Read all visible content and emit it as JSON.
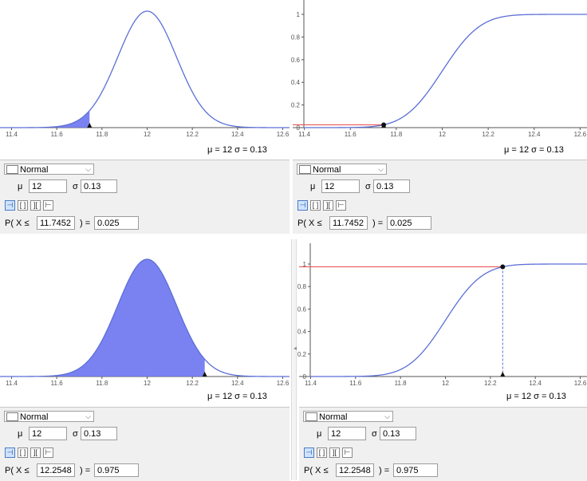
{
  "colors": {
    "curve": "#5b6fd6",
    "shade": "#6b74f0",
    "marker": "#e64c4c",
    "axis": "#555555"
  },
  "distribution": {
    "label": "Normal",
    "mu": "12",
    "sigma": "0.13"
  },
  "stats": {
    "mu_label": "μ = 12",
    "sigma_label": "σ = 0.13"
  },
  "params": {
    "mu_symbol": "μ",
    "sigma_symbol": "σ",
    "p_prefix": "P( X ≤",
    "p_suffix": ") ="
  },
  "interval_buttons": [
    "left-sided",
    "interval",
    "two-tailed",
    "right-sided"
  ],
  "x_axis": {
    "ticks": [
      "11.4",
      "11.6",
      "11.8",
      "12",
      "12.2",
      "12.4",
      "12.6"
    ]
  },
  "y_axis": {
    "ticks": [
      "0",
      "0.2",
      "0.4",
      "0.6",
      "0.8",
      "1"
    ]
  },
  "panels": [
    {
      "id": "top-left",
      "view": "pdf",
      "x_value": "11.7452",
      "probability": "0.025"
    },
    {
      "id": "top-right",
      "view": "cdf",
      "x_value": "11.7452",
      "probability": "0.025"
    },
    {
      "id": "bottom-left",
      "view": "pdf",
      "x_value": "12.2548",
      "probability": "0.975"
    },
    {
      "id": "bottom-right",
      "view": "cdf",
      "x_value": "12.2548",
      "probability": "0.975"
    }
  ],
  "chart_data": [
    {
      "type": "area",
      "title": "",
      "xlabel": "",
      "ylabel": "",
      "mean": 12,
      "sd": 0.13,
      "xlim": [
        11.37,
        12.63
      ],
      "shaded_x_max": 11.7452,
      "grid": false
    },
    {
      "type": "line",
      "title": "",
      "xlabel": "",
      "ylabel": "",
      "mean": 12,
      "sd": 0.13,
      "xlim": [
        11.37,
        12.63
      ],
      "ylim": [
        0,
        1
      ],
      "point": [
        11.7452,
        0.025
      ],
      "grid": false
    },
    {
      "type": "area",
      "title": "",
      "xlabel": "",
      "ylabel": "",
      "mean": 12,
      "sd": 0.13,
      "xlim": [
        11.37,
        12.63
      ],
      "shaded_x_max": 12.2548,
      "grid": false
    },
    {
      "type": "line",
      "title": "",
      "xlabel": "",
      "ylabel": "",
      "mean": 12,
      "sd": 0.13,
      "xlim": [
        11.37,
        12.63
      ],
      "ylim": [
        0,
        1
      ],
      "point": [
        12.2548,
        0.975
      ],
      "grid": false
    }
  ]
}
